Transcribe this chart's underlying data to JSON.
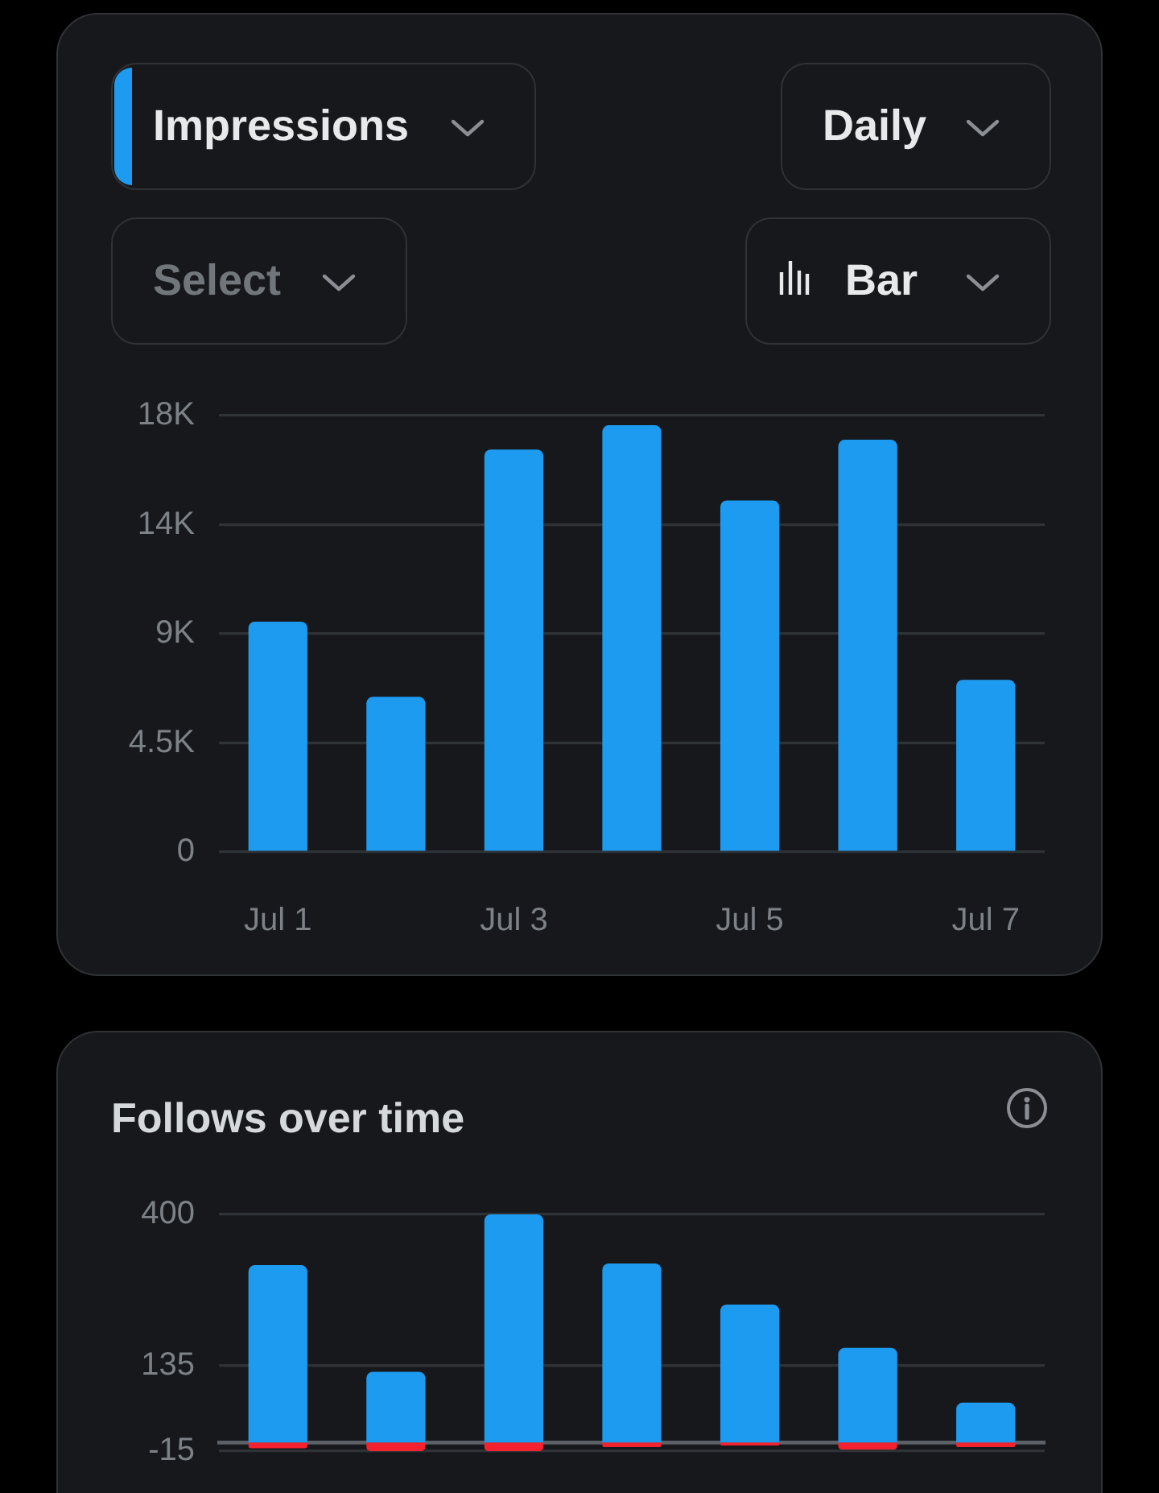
{
  "chart_data": [
    {
      "type": "bar",
      "categories": [
        "Jul 1",
        null,
        "Jul 3",
        null,
        "Jul 5",
        null,
        "Jul 7"
      ],
      "series": [
        {
          "name": "Impressions",
          "color": "#1d9bf0",
          "values": [
            9500,
            6400,
            16600,
            17600,
            14500,
            17000,
            7100
          ]
        }
      ],
      "ylim": [
        0,
        18000
      ],
      "yticks": [
        0,
        {
          "value": 4500,
          "label": "4.5K"
        },
        {
          "value": 9000,
          "label": "9K"
        },
        {
          "value": 13500,
          "label": "14K"
        },
        {
          "value": 18000,
          "label": "18K"
        }
      ],
      "grid": "y",
      "legend": "top left",
      "annotations": [
        "Daily",
        "Select",
        "Bar"
      ]
    },
    {
      "type": "bar",
      "title": "Follows over time",
      "categories": [
        null,
        null,
        null,
        null,
        null,
        null,
        null
      ],
      "series": [
        {
          "color": "#1d9bf0",
          "values": [
            311,
            124,
            400,
            314,
            242,
            166,
            70
          ]
        },
        {
          "color": "#f4212e",
          "values": [
            -10,
            -15,
            -15,
            -8,
            -5,
            -12,
            -8
          ]
        }
      ],
      "stacked": true,
      "ylim": [
        -15,
        400
      ],
      "yticks": [
        -15,
        135,
        400
      ],
      "grid": "y",
      "tick_labels": "y"
    }
  ]
}
